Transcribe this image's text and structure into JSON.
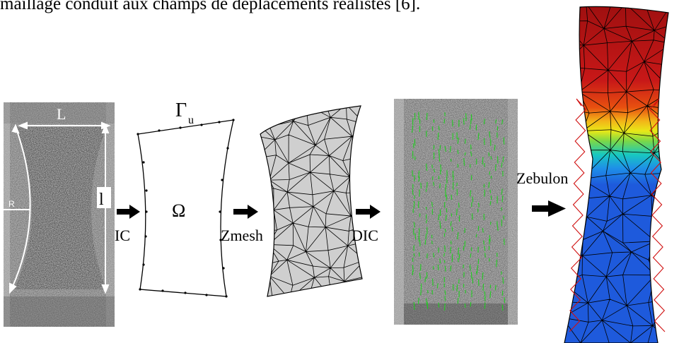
{
  "caption": "maillage conduit aux champs de déplacements réalistes [6].",
  "labels": {
    "width": "L",
    "height": "l",
    "radius": "R",
    "boundary_main": "Γ",
    "boundary_sub": "u",
    "domain": "Ω",
    "step1": "IC",
    "step2": "Zmesh",
    "step3": "DIC",
    "step4": "Zebulon"
  },
  "colors": {
    "mesh_line": "#000000",
    "mesh_fill": "#cfcfcf",
    "specimen_dark": "#5a5a5a",
    "vector_green": "#22cc22",
    "fe_red": "#a01010",
    "fe_blue": "#1e5adc",
    "outline_red": "#d01010"
  }
}
